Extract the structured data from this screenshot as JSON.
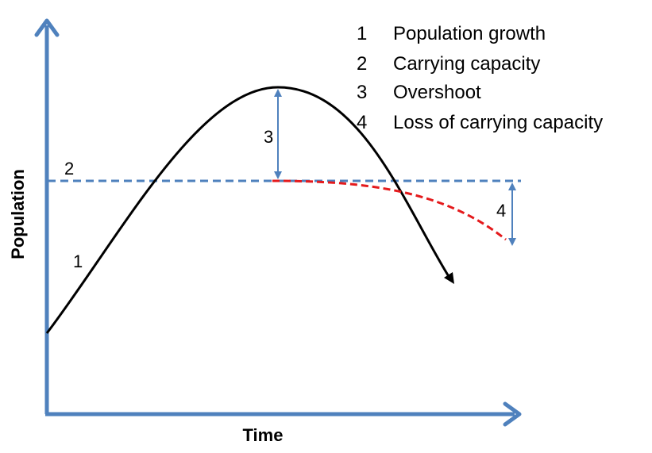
{
  "axes": {
    "x_title": "Time",
    "y_title": "Population"
  },
  "colors": {
    "axis": "#4f81bd",
    "curve": "#000000",
    "capacity_line": "#4f81bd",
    "decline_curve": "#e41a1c",
    "arrow": "#4f81bd"
  },
  "markers": {
    "m1": "1",
    "m2": "2",
    "m3": "3",
    "m4": "4"
  },
  "legend": [
    {
      "number": "1",
      "label": "Population growth"
    },
    {
      "number": "2",
      "label": "Carrying capacity"
    },
    {
      "number": "3",
      "label": "Overshoot"
    },
    {
      "number": "4",
      "label": "Loss of carrying capacity"
    }
  ]
}
